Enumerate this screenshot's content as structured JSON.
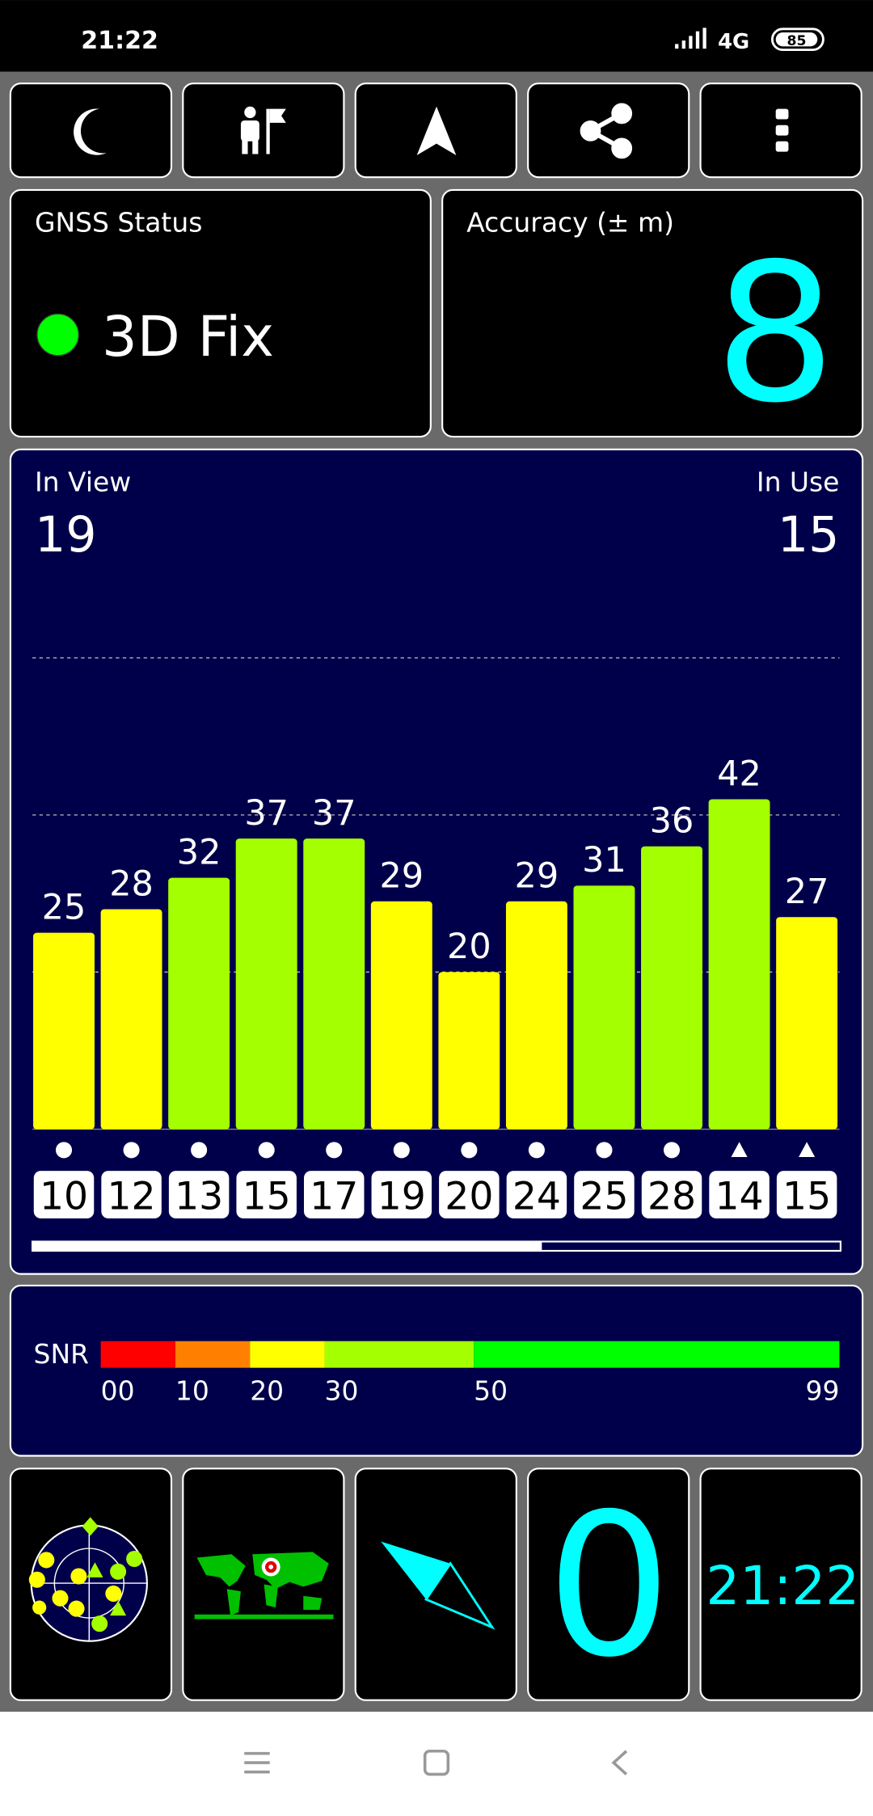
{
  "status_bar": {
    "time": "21:22",
    "network": "4G",
    "battery": "85"
  },
  "gnss_status": {
    "label": "GNSS Status",
    "value": "3D Fix"
  },
  "accuracy": {
    "label": "Accuracy (± m)",
    "value": 8
  },
  "chart_data": {
    "type": "bar",
    "in_view_label": "In View",
    "in_view": 19,
    "in_use_label": "In Use",
    "in_use": 15,
    "categories": [
      "10",
      "12",
      "13",
      "15",
      "17",
      "19",
      "20",
      "24",
      "25",
      "28",
      "14",
      "15"
    ],
    "values": [
      25,
      28,
      32,
      37,
      37,
      29,
      20,
      29,
      31,
      36,
      42,
      27
    ],
    "markers": [
      "circle",
      "circle",
      "circle",
      "circle",
      "circle",
      "circle",
      "circle",
      "circle",
      "circle",
      "circle",
      "triangle",
      "triangle"
    ],
    "ylim": [
      0,
      60
    ],
    "yticks": [
      20,
      40,
      60
    ],
    "grid": true
  },
  "snr_scale": {
    "label": "SNR",
    "ticks": [
      {
        "value": 0,
        "label": "00"
      },
      10,
      20,
      30,
      50,
      99
    ],
    "colors": [
      "#ff0000",
      "#ff8000",
      "#ffff00",
      "#a4ff00",
      "#00ff00"
    ]
  },
  "tiles": {
    "count": 0,
    "clock": "21:22"
  }
}
